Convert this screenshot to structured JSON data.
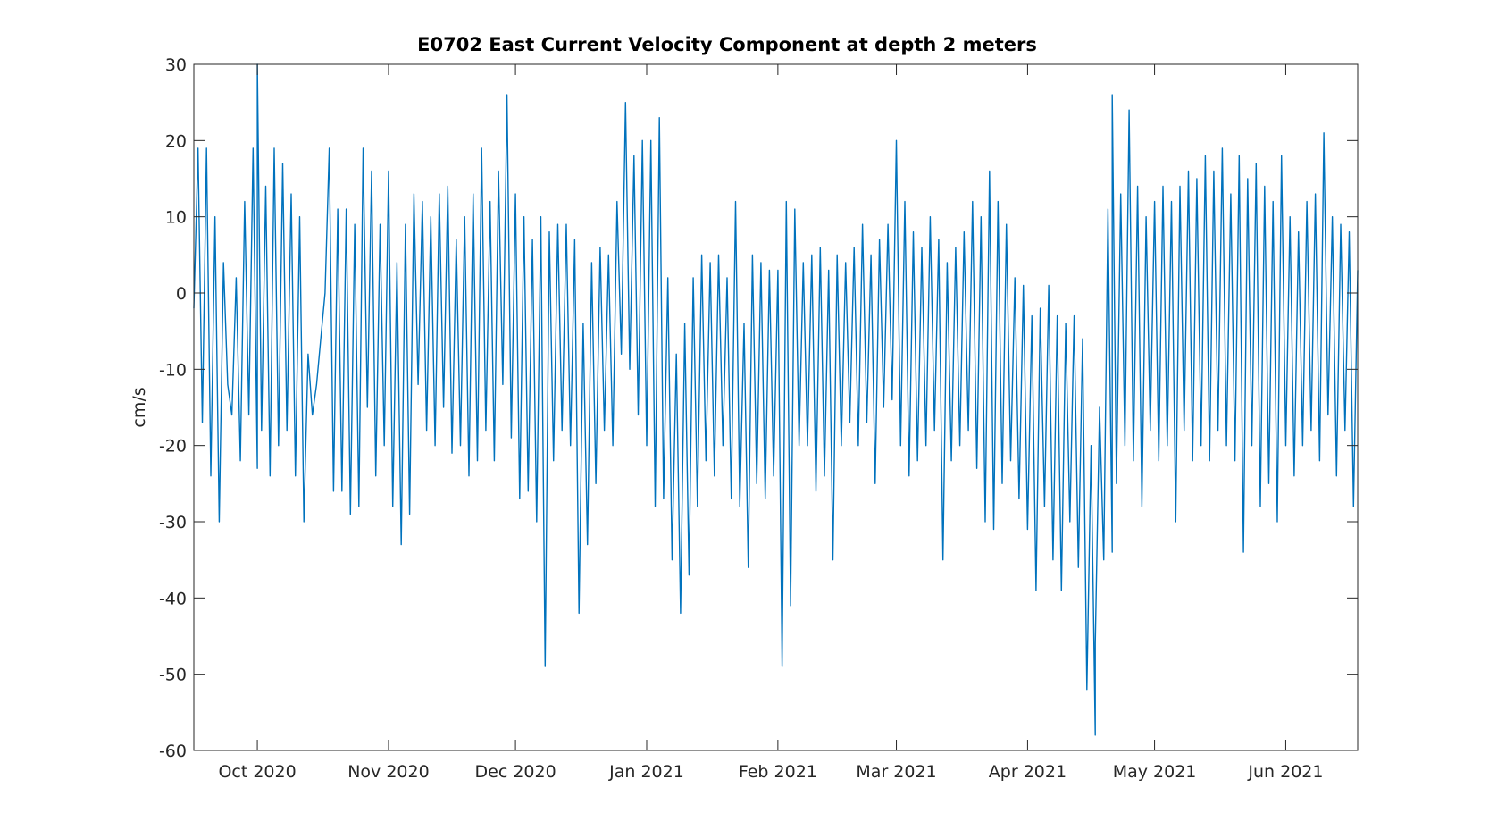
{
  "chart_data": {
    "type": "line",
    "title": "E0702 East Current Velocity Component at depth 2 meters",
    "xlabel": "",
    "ylabel": "cm/s",
    "ylim": [
      -60,
      30
    ],
    "xlim": [
      "2020-09-16",
      "2021-06-18"
    ],
    "yticks": [
      30,
      20,
      10,
      0,
      -10,
      -20,
      -30,
      -40,
      -50,
      -60
    ],
    "xticks": [
      {
        "date": "2020-10-01",
        "label": "Oct 2020"
      },
      {
        "date": "2020-11-01",
        "label": "Nov 2020"
      },
      {
        "date": "2020-12-01",
        "label": "Dec 2020"
      },
      {
        "date": "2021-01-01",
        "label": "Jan 2021"
      },
      {
        "date": "2021-02-01",
        "label": "Feb 2021"
      },
      {
        "date": "2021-03-01",
        "label": "Mar 2021"
      },
      {
        "date": "2021-04-01",
        "label": "Apr 2021"
      },
      {
        "date": "2021-05-01",
        "label": "May 2021"
      },
      {
        "date": "2021-06-01",
        "label": "Jun 2021"
      }
    ],
    "grid": false,
    "line_color": "#0072BD",
    "series": [
      {
        "values": [
          [
            "2020-09-16",
            -2
          ],
          [
            "2020-09-17",
            19
          ],
          [
            "2020-09-18",
            -17
          ],
          [
            "2020-09-19",
            19
          ],
          [
            "2020-09-20",
            -24
          ],
          [
            "2020-09-21",
            10
          ],
          [
            "2020-09-22",
            -30
          ],
          [
            "2020-09-23",
            4
          ],
          [
            "2020-09-24",
            -12
          ],
          [
            "2020-09-25",
            -16
          ],
          [
            "2020-09-26",
            2
          ],
          [
            "2020-09-27",
            -22
          ],
          [
            "2020-09-28",
            12
          ],
          [
            "2020-09-29",
            -16
          ],
          [
            "2020-09-30",
            19
          ],
          [
            "2020-10-01",
            -23
          ],
          [
            "2020-10-01",
            30
          ],
          [
            "2020-10-02",
            -18
          ],
          [
            "2020-10-03",
            14
          ],
          [
            "2020-10-04",
            -24
          ],
          [
            "2020-10-05",
            19
          ],
          [
            "2020-10-06",
            -20
          ],
          [
            "2020-10-07",
            17
          ],
          [
            "2020-10-08",
            -18
          ],
          [
            "2020-10-09",
            13
          ],
          [
            "2020-10-10",
            -24
          ],
          [
            "2020-10-11",
            10
          ],
          [
            "2020-10-12",
            -30
          ],
          [
            "2020-10-13",
            -8
          ],
          [
            "2020-10-14",
            -16
          ],
          [
            "2020-10-15",
            -12
          ],
          [
            "2020-10-16",
            -6
          ],
          [
            "2020-10-17",
            0
          ],
          [
            "2020-10-18",
            19
          ],
          [
            "2020-10-19",
            -26
          ],
          [
            "2020-10-20",
            11
          ],
          [
            "2020-10-21",
            -26
          ],
          [
            "2020-10-22",
            11
          ],
          [
            "2020-10-23",
            -29
          ],
          [
            "2020-10-24",
            9
          ],
          [
            "2020-10-25",
            -28
          ],
          [
            "2020-10-26",
            19
          ],
          [
            "2020-10-27",
            -15
          ],
          [
            "2020-10-28",
            16
          ],
          [
            "2020-10-29",
            -24
          ],
          [
            "2020-10-30",
            9
          ],
          [
            "2020-10-31",
            -20
          ],
          [
            "2020-11-01",
            16
          ],
          [
            "2020-11-02",
            -28
          ],
          [
            "2020-11-03",
            4
          ],
          [
            "2020-11-04",
            -33
          ],
          [
            "2020-11-05",
            9
          ],
          [
            "2020-11-06",
            -29
          ],
          [
            "2020-11-07",
            13
          ],
          [
            "2020-11-08",
            -12
          ],
          [
            "2020-11-09",
            12
          ],
          [
            "2020-11-10",
            -18
          ],
          [
            "2020-11-11",
            10
          ],
          [
            "2020-11-12",
            -20
          ],
          [
            "2020-11-13",
            13
          ],
          [
            "2020-11-14",
            -15
          ],
          [
            "2020-11-15",
            14
          ],
          [
            "2020-11-16",
            -21
          ],
          [
            "2020-11-17",
            7
          ],
          [
            "2020-11-18",
            -20
          ],
          [
            "2020-11-19",
            10
          ],
          [
            "2020-11-20",
            -24
          ],
          [
            "2020-11-21",
            13
          ],
          [
            "2020-11-22",
            -22
          ],
          [
            "2020-11-23",
            19
          ],
          [
            "2020-11-24",
            -18
          ],
          [
            "2020-11-25",
            12
          ],
          [
            "2020-11-26",
            -22
          ],
          [
            "2020-11-27",
            16
          ],
          [
            "2020-11-28",
            -12
          ],
          [
            "2020-11-29",
            26
          ],
          [
            "2020-11-30",
            -19
          ],
          [
            "2020-12-01",
            13
          ],
          [
            "2020-12-02",
            -27
          ],
          [
            "2020-12-03",
            10
          ],
          [
            "2020-12-04",
            -26
          ],
          [
            "2020-12-05",
            7
          ],
          [
            "2020-12-06",
            -30
          ],
          [
            "2020-12-07",
            10
          ],
          [
            "2020-12-08",
            -49
          ],
          [
            "2020-12-09",
            8
          ],
          [
            "2020-12-10",
            -22
          ],
          [
            "2020-12-11",
            9
          ],
          [
            "2020-12-12",
            -18
          ],
          [
            "2020-12-13",
            9
          ],
          [
            "2020-12-14",
            -20
          ],
          [
            "2020-12-15",
            7
          ],
          [
            "2020-12-16",
            -42
          ],
          [
            "2020-12-17",
            -4
          ],
          [
            "2020-12-18",
            -33
          ],
          [
            "2020-12-19",
            4
          ],
          [
            "2020-12-20",
            -25
          ],
          [
            "2020-12-21",
            6
          ],
          [
            "2020-12-22",
            -18
          ],
          [
            "2020-12-23",
            5
          ],
          [
            "2020-12-24",
            -20
          ],
          [
            "2020-12-25",
            12
          ],
          [
            "2020-12-26",
            -8
          ],
          [
            "2020-12-27",
            25
          ],
          [
            "2020-12-28",
            -10
          ],
          [
            "2020-12-29",
            18
          ],
          [
            "2020-12-30",
            -16
          ],
          [
            "2020-12-31",
            20
          ],
          [
            "2021-01-01",
            -20
          ],
          [
            "2021-01-02",
            20
          ],
          [
            "2021-01-03",
            -28
          ],
          [
            "2021-01-04",
            23
          ],
          [
            "2021-01-05",
            -27
          ],
          [
            "2021-01-06",
            2
          ],
          [
            "2021-01-07",
            -35
          ],
          [
            "2021-01-08",
            -8
          ],
          [
            "2021-01-09",
            -42
          ],
          [
            "2021-01-10",
            -4
          ],
          [
            "2021-01-11",
            -37
          ],
          [
            "2021-01-12",
            2
          ],
          [
            "2021-01-13",
            -28
          ],
          [
            "2021-01-14",
            5
          ],
          [
            "2021-01-15",
            -22
          ],
          [
            "2021-01-16",
            4
          ],
          [
            "2021-01-17",
            -24
          ],
          [
            "2021-01-18",
            5
          ],
          [
            "2021-01-19",
            -20
          ],
          [
            "2021-01-20",
            2
          ],
          [
            "2021-01-21",
            -27
          ],
          [
            "2021-01-22",
            12
          ],
          [
            "2021-01-23",
            -28
          ],
          [
            "2021-01-24",
            -4
          ],
          [
            "2021-01-25",
            -36
          ],
          [
            "2021-01-26",
            5
          ],
          [
            "2021-01-27",
            -25
          ],
          [
            "2021-01-28",
            4
          ],
          [
            "2021-01-29",
            -27
          ],
          [
            "2021-01-30",
            3
          ],
          [
            "2021-01-31",
            -24
          ],
          [
            "2021-02-01",
            3
          ],
          [
            "2021-02-02",
            -49
          ],
          [
            "2021-02-03",
            12
          ],
          [
            "2021-02-04",
            -41
          ],
          [
            "2021-02-05",
            11
          ],
          [
            "2021-02-06",
            -20
          ],
          [
            "2021-02-07",
            4
          ],
          [
            "2021-02-08",
            -20
          ],
          [
            "2021-02-09",
            5
          ],
          [
            "2021-02-10",
            -26
          ],
          [
            "2021-02-11",
            6
          ],
          [
            "2021-02-12",
            -24
          ],
          [
            "2021-02-13",
            3
          ],
          [
            "2021-02-14",
            -35
          ],
          [
            "2021-02-15",
            5
          ],
          [
            "2021-02-16",
            -20
          ],
          [
            "2021-02-17",
            4
          ],
          [
            "2021-02-18",
            -17
          ],
          [
            "2021-02-19",
            6
          ],
          [
            "2021-02-20",
            -20
          ],
          [
            "2021-02-21",
            9
          ],
          [
            "2021-02-22",
            -17
          ],
          [
            "2021-02-23",
            5
          ],
          [
            "2021-02-24",
            -25
          ],
          [
            "2021-02-25",
            7
          ],
          [
            "2021-02-26",
            -15
          ],
          [
            "2021-02-27",
            9
          ],
          [
            "2021-02-28",
            -14
          ],
          [
            "2021-03-01",
            20
          ],
          [
            "2021-03-02",
            -20
          ],
          [
            "2021-03-03",
            12
          ],
          [
            "2021-03-04",
            -24
          ],
          [
            "2021-03-05",
            8
          ],
          [
            "2021-03-06",
            -22
          ],
          [
            "2021-03-07",
            6
          ],
          [
            "2021-03-08",
            -20
          ],
          [
            "2021-03-09",
            10
          ],
          [
            "2021-03-10",
            -18
          ],
          [
            "2021-03-11",
            7
          ],
          [
            "2021-03-12",
            -35
          ],
          [
            "2021-03-13",
            4
          ],
          [
            "2021-03-14",
            -22
          ],
          [
            "2021-03-15",
            6
          ],
          [
            "2021-03-16",
            -20
          ],
          [
            "2021-03-17",
            8
          ],
          [
            "2021-03-18",
            -18
          ],
          [
            "2021-03-19",
            12
          ],
          [
            "2021-03-20",
            -23
          ],
          [
            "2021-03-21",
            10
          ],
          [
            "2021-03-22",
            -30
          ],
          [
            "2021-03-23",
            16
          ],
          [
            "2021-03-24",
            -31
          ],
          [
            "2021-03-25",
            12
          ],
          [
            "2021-03-26",
            -25
          ],
          [
            "2021-03-27",
            9
          ],
          [
            "2021-03-28",
            -22
          ],
          [
            "2021-03-29",
            2
          ],
          [
            "2021-03-30",
            -27
          ],
          [
            "2021-03-31",
            1
          ],
          [
            "2021-04-01",
            -31
          ],
          [
            "2021-04-02",
            -3
          ],
          [
            "2021-04-03",
            -39
          ],
          [
            "2021-04-04",
            -2
          ],
          [
            "2021-04-05",
            -28
          ],
          [
            "2021-04-06",
            1
          ],
          [
            "2021-04-07",
            -35
          ],
          [
            "2021-04-08",
            -3
          ],
          [
            "2021-04-09",
            -39
          ],
          [
            "2021-04-10",
            -4
          ],
          [
            "2021-04-11",
            -30
          ],
          [
            "2021-04-12",
            -3
          ],
          [
            "2021-04-13",
            -36
          ],
          [
            "2021-04-14",
            -6
          ],
          [
            "2021-04-15",
            -52
          ],
          [
            "2021-04-16",
            -20
          ],
          [
            "2021-04-17",
            -58
          ],
          [
            "2021-04-17",
            -46
          ],
          [
            "2021-04-18",
            -15
          ],
          [
            "2021-04-19",
            -35
          ],
          [
            "2021-04-20",
            11
          ],
          [
            "2021-04-21",
            -34
          ],
          [
            "2021-04-21",
            26
          ],
          [
            "2021-04-22",
            -25
          ],
          [
            "2021-04-23",
            13
          ],
          [
            "2021-04-24",
            -20
          ],
          [
            "2021-04-25",
            24
          ],
          [
            "2021-04-26",
            -22
          ],
          [
            "2021-04-27",
            14
          ],
          [
            "2021-04-28",
            -28
          ],
          [
            "2021-04-29",
            10
          ],
          [
            "2021-04-30",
            -18
          ],
          [
            "2021-05-01",
            12
          ],
          [
            "2021-05-02",
            -22
          ],
          [
            "2021-05-03",
            14
          ],
          [
            "2021-05-04",
            -20
          ],
          [
            "2021-05-05",
            12
          ],
          [
            "2021-05-06",
            -30
          ],
          [
            "2021-05-07",
            14
          ],
          [
            "2021-05-08",
            -18
          ],
          [
            "2021-05-09",
            16
          ],
          [
            "2021-05-10",
            -22
          ],
          [
            "2021-05-11",
            15
          ],
          [
            "2021-05-12",
            -20
          ],
          [
            "2021-05-13",
            18
          ],
          [
            "2021-05-14",
            -22
          ],
          [
            "2021-05-15",
            16
          ],
          [
            "2021-05-16",
            -18
          ],
          [
            "2021-05-17",
            19
          ],
          [
            "2021-05-18",
            -20
          ],
          [
            "2021-05-19",
            13
          ],
          [
            "2021-05-20",
            -22
          ],
          [
            "2021-05-21",
            18
          ],
          [
            "2021-05-22",
            -34
          ],
          [
            "2021-05-23",
            15
          ],
          [
            "2021-05-24",
            -20
          ],
          [
            "2021-05-25",
            17
          ],
          [
            "2021-05-26",
            -28
          ],
          [
            "2021-05-27",
            14
          ],
          [
            "2021-05-28",
            -25
          ],
          [
            "2021-05-29",
            12
          ],
          [
            "2021-05-30",
            -30
          ],
          [
            "2021-05-31",
            18
          ],
          [
            "2021-06-01",
            -20
          ],
          [
            "2021-06-02",
            10
          ],
          [
            "2021-06-03",
            -24
          ],
          [
            "2021-06-04",
            8
          ],
          [
            "2021-06-05",
            -20
          ],
          [
            "2021-06-06",
            12
          ],
          [
            "2021-06-07",
            -18
          ],
          [
            "2021-06-08",
            13
          ],
          [
            "2021-06-09",
            -22
          ],
          [
            "2021-06-10",
            21
          ],
          [
            "2021-06-11",
            -16
          ],
          [
            "2021-06-12",
            10
          ],
          [
            "2021-06-13",
            -24
          ],
          [
            "2021-06-14",
            9
          ],
          [
            "2021-06-15",
            -18
          ],
          [
            "2021-06-16",
            8
          ],
          [
            "2021-06-17",
            -28
          ],
          [
            "2021-06-18",
            3
          ]
        ]
      }
    ]
  }
}
